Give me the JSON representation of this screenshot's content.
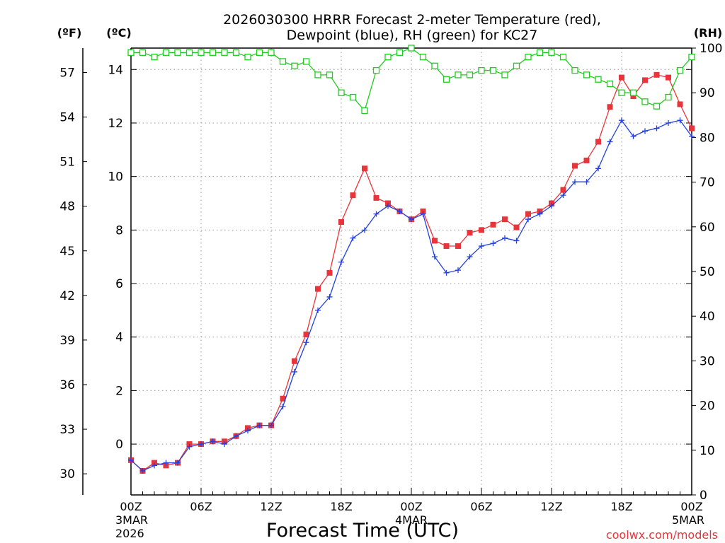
{
  "title_line1": "2026030300 HRRR Forecast 2-meter Temperature (red),",
  "title_line2": "Dewpoint (blue), RH (green) for KC27",
  "xlabel": "Forecast Time (UTC)",
  "credit": "coolwx.com/models",
  "colors": {
    "temperature": "#e8343a",
    "dewpoint": "#2340e0",
    "rh": "#22cc22",
    "grid": "#999999"
  },
  "chart_data": {
    "type": "line",
    "x_hours": [
      0,
      1,
      2,
      3,
      4,
      5,
      6,
      7,
      8,
      9,
      10,
      11,
      12,
      13,
      14,
      15,
      16,
      17,
      18,
      19,
      20,
      21,
      22,
      23,
      24,
      25,
      26,
      27,
      28,
      29,
      30,
      31,
      32,
      33,
      34,
      35,
      36,
      37,
      38,
      39,
      40,
      41,
      42,
      43,
      44,
      45,
      46,
      47,
      48
    ],
    "x_ticks": [
      {
        "hour": 0,
        "label": "00Z",
        "label2": "3MAR",
        "label3": "2026"
      },
      {
        "hour": 6,
        "label": "06Z"
      },
      {
        "hour": 12,
        "label": "12Z"
      },
      {
        "hour": 18,
        "label": "18Z"
      },
      {
        "hour": 24,
        "label": "00Z",
        "label2": "4MAR"
      },
      {
        "hour": 30,
        "label": "06Z"
      },
      {
        "hour": 36,
        "label": "12Z"
      },
      {
        "hour": 42,
        "label": "18Z"
      },
      {
        "hour": 48,
        "label": "00Z",
        "label2": "5MAR"
      }
    ],
    "axes": {
      "celsius": {
        "label": "(ºC)",
        "range": [
          -1.9,
          14.8
        ],
        "ticks": [
          0,
          2,
          4,
          6,
          8,
          10,
          12,
          14
        ]
      },
      "fahrenheit": {
        "label": "(ºF)",
        "ticks": [
          30,
          33,
          36,
          39,
          42,
          45,
          48,
          51,
          54,
          57
        ]
      },
      "rh": {
        "label": "(RH)",
        "range": [
          0,
          100
        ],
        "ticks": [
          0,
          10,
          20,
          30,
          40,
          50,
          60,
          70,
          80,
          90,
          100
        ]
      }
    },
    "grid": true,
    "series": [
      {
        "name": "Temperature",
        "axis": "celsius",
        "values": [
          -0.6,
          -1.0,
          -0.7,
          -0.8,
          -0.7,
          0.0,
          0.0,
          0.1,
          0.1,
          0.3,
          0.6,
          0.7,
          0.7,
          1.7,
          3.1,
          4.1,
          5.8,
          6.4,
          8.3,
          9.3,
          10.3,
          9.2,
          9.0,
          8.7,
          8.4,
          8.7,
          7.6,
          7.4,
          7.4,
          7.9,
          8.0,
          8.2,
          8.4,
          8.1,
          8.6,
          8.7,
          9.0,
          9.5,
          10.4,
          10.6,
          11.3,
          12.6,
          13.7,
          13.0,
          13.6,
          13.8,
          13.7,
          12.7,
          11.8
        ]
      },
      {
        "name": "Dewpoint",
        "axis": "celsius",
        "values": [
          -0.6,
          -1.0,
          -0.8,
          -0.7,
          -0.7,
          -0.1,
          0.0,
          0.1,
          0.0,
          0.3,
          0.5,
          0.7,
          0.7,
          1.4,
          2.7,
          3.8,
          5.0,
          5.5,
          6.8,
          7.7,
          8.0,
          8.6,
          8.9,
          8.7,
          8.4,
          8.6,
          7.0,
          6.4,
          6.5,
          7.0,
          7.4,
          7.5,
          7.7,
          7.6,
          8.4,
          8.6,
          8.9,
          9.3,
          9.8,
          9.8,
          10.3,
          11.3,
          12.1,
          11.5,
          11.7,
          11.8,
          12.0,
          12.1,
          11.5
        ]
      },
      {
        "name": "RH",
        "axis": "rh",
        "values": [
          99,
          99,
          98,
          99,
          99,
          99,
          99,
          99,
          99,
          99,
          98,
          99,
          99,
          97,
          96,
          97,
          94,
          94,
          90,
          89,
          86,
          95,
          98,
          99,
          100,
          98,
          96,
          93,
          94,
          94,
          95,
          95,
          94,
          96,
          98,
          99,
          99,
          98,
          95,
          94,
          93,
          92,
          90,
          90,
          88,
          87,
          89,
          95,
          98
        ]
      }
    ]
  }
}
